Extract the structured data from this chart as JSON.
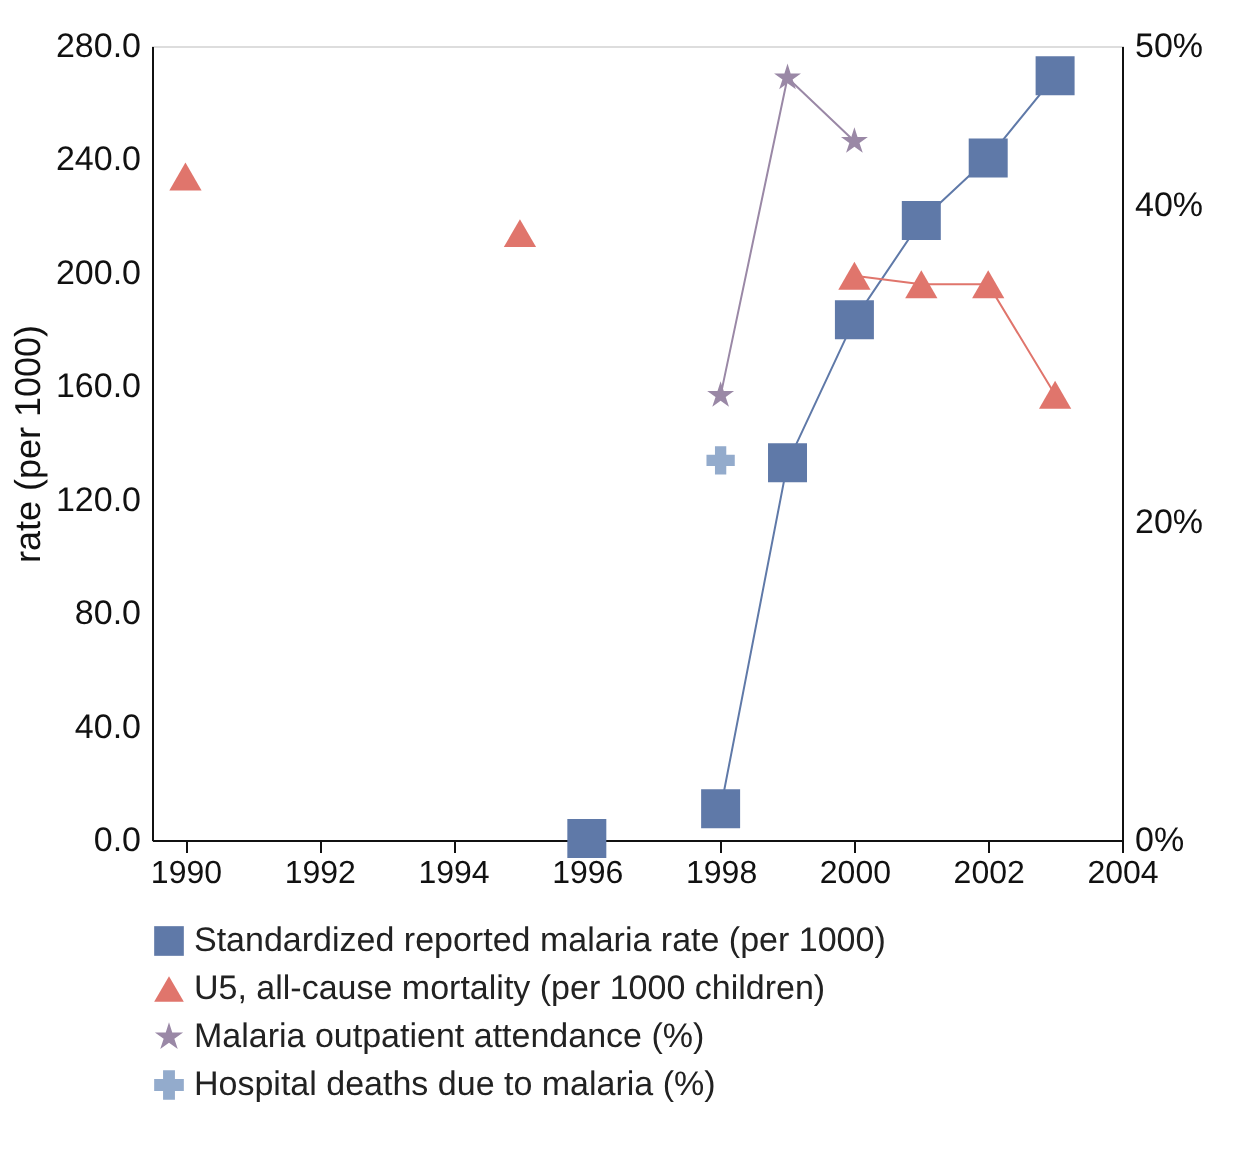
{
  "chart_data": {
    "type": "line",
    "ylabel": "rate (per 1000)",
    "xlim": [
      1989.5,
      2004
    ],
    "xticks": [
      1990,
      1992,
      1994,
      1996,
      1998,
      2000,
      2002,
      2004
    ],
    "ylim": [
      0,
      280
    ],
    "yticks": [
      {
        "value": 0,
        "label": "0.0"
      },
      {
        "value": 40,
        "label": "40.0"
      },
      {
        "value": 80,
        "label": "80.0"
      },
      {
        "value": 120,
        "label": "120.0"
      },
      {
        "value": 160,
        "label": "160.0"
      },
      {
        "value": 200,
        "label": "200.0"
      },
      {
        "value": 240,
        "label": "240.0"
      },
      {
        "value": 280,
        "label": "280.0"
      }
    ],
    "y2lim": [
      0,
      50
    ],
    "y2ticks": [
      {
        "value": 0,
        "label": "0%"
      },
      {
        "value": 20,
        "label": "20%"
      },
      {
        "value": 40,
        "label": "40%"
      },
      {
        "value": 50,
        "label": "50%"
      }
    ],
    "grid": false,
    "legend": "bottom",
    "line_style": "solid",
    "series": [
      {
        "name": "Standardized reported malaria rate (per 1000)",
        "color": "#5f79a8",
        "marker": "square",
        "x": [
          1996,
          1997,
          1998,
          1999,
          2000,
          2001,
          2002,
          2003
        ],
        "values": [
          0.5,
          null,
          11,
          133,
          183.5,
          218.5,
          240.5,
          269.5
        ]
      },
      {
        "name": "U5, all-cause mortality (per 1000 children)",
        "color": "#e0756c",
        "marker": "triangle",
        "x": [
          1990,
          1991,
          1995,
          1996,
          2000,
          2001,
          2002,
          2003
        ],
        "values": [
          234,
          null,
          214,
          null,
          199,
          196,
          196,
          157
        ]
      },
      {
        "name": "Malaria outpatient attendance (%)",
        "color": "#9a88a6",
        "marker": "star",
        "axis": "y2",
        "x": [
          1998,
          1999,
          2000
        ],
        "values": [
          28,
          48,
          44
        ]
      },
      {
        "name": "Hospital deaths due to malaria (%)",
        "color": "#93abcc",
        "marker": "cross",
        "axis": "y2",
        "x": [
          1998
        ],
        "values": [
          23.9
        ]
      }
    ]
  }
}
